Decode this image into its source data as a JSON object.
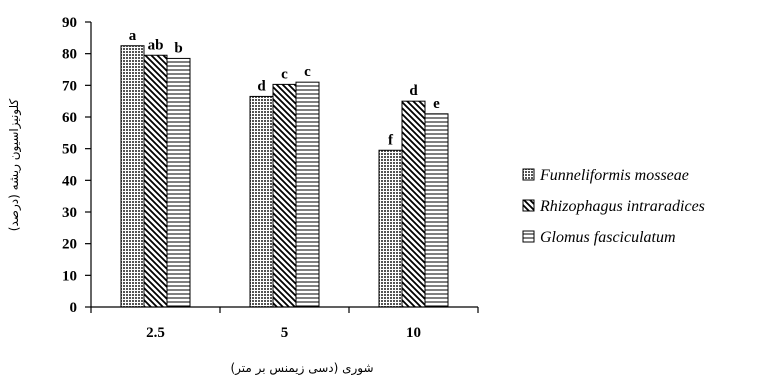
{
  "chart_data": {
    "type": "bar",
    "title": "",
    "xlabel": "شوری (دسی زیمنس بر متر)",
    "ylabel": "کلونیزاسیون ریشه (درصد)",
    "ylim": [
      0,
      90
    ],
    "yticks": [
      "0",
      "10",
      "20",
      "30",
      "40",
      "50",
      "60",
      "70",
      "80",
      "90"
    ],
    "categories": [
      "2.5",
      "5",
      "10"
    ],
    "grid": false,
    "legend_position": "right",
    "series": [
      {
        "name": "Funneliformis mosseae",
        "pattern": "dots",
        "values": [
          82.5,
          66.5,
          49.5
        ],
        "labels": [
          "a",
          "d",
          "f"
        ]
      },
      {
        "name": "Rhizophagus intraradices",
        "pattern": "diagonal",
        "values": [
          79.5,
          70.3,
          65
        ],
        "labels": [
          "ab",
          "c",
          "d"
        ]
      },
      {
        "name": "Glomus fasciculatum",
        "pattern": "horizontal",
        "values": [
          78.5,
          71,
          61
        ],
        "labels": [
          "b",
          "c",
          "e"
        ]
      }
    ]
  }
}
